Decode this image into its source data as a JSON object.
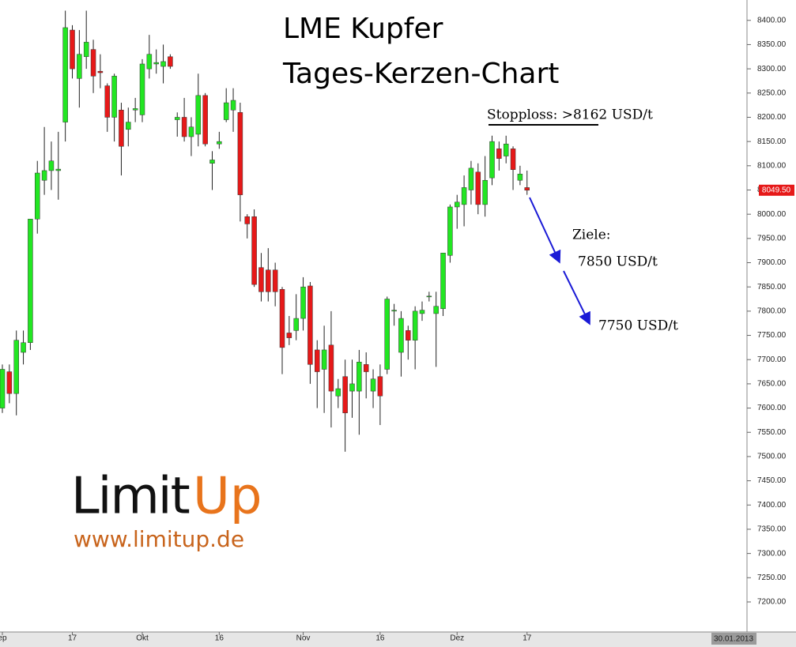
{
  "chart_data": {
    "type": "candlestick",
    "title": "LME Kupfer",
    "subtitle": "Tages-Kerzen-Chart",
    "annotations": {
      "stop": "Stopploss: >8162 USD/t",
      "targets_title": "Ziele:",
      "target1": "7850 USD/t",
      "target2": "7750 USD/t"
    },
    "logo": {
      "left": "Limit",
      "right": "Up",
      "url": "www.limitup.de"
    },
    "end_date": "30.01.2013",
    "last_price": {
      "value": 8049.5,
      "label": "8049.50"
    },
    "up_color": "#22e622",
    "down_color": "#e61919",
    "categories": [
      "ep",
      null,
      null,
      null,
      null,
      null,
      null,
      null,
      null,
      null,
      "17",
      null,
      null,
      null,
      null,
      null,
      null,
      null,
      null,
      null,
      "Okt",
      null,
      null,
      null,
      null,
      null,
      null,
      null,
      null,
      null,
      null,
      "16",
      null,
      null,
      null,
      null,
      null,
      null,
      null,
      null,
      null,
      null,
      null,
      "Nov",
      null,
      null,
      null,
      null,
      null,
      null,
      null,
      null,
      null,
      null,
      "16",
      null,
      null,
      null,
      null,
      null,
      null,
      null,
      null,
      null,
      null,
      "Dez",
      null,
      null,
      null,
      null,
      null,
      null,
      null,
      null,
      null,
      "17"
    ],
    "open": [
      7600,
      7675,
      7630,
      7715,
      7735,
      7990,
      8070,
      8090,
      8090,
      8190,
      8380,
      8280,
      8325,
      8340,
      8295,
      8265,
      8200,
      8215,
      8175,
      8215,
      8205,
      8300,
      8310,
      8305,
      8325,
      8195,
      8200,
      8160,
      8165,
      8245,
      8105,
      8145,
      8195,
      8215,
      8210,
      7995,
      7995,
      7890,
      7885,
      7885,
      7845,
      7755,
      7760,
      7785,
      7852,
      7720,
      7680,
      7730,
      7625,
      7665,
      7635,
      7635,
      7690,
      7635,
      7665,
      7680,
      7800,
      7715,
      7760,
      7740,
      7795,
      7830,
      7795,
      7805,
      7915,
      8015,
      8020,
      8050,
      8087,
      8020,
      8075,
      8135,
      8120,
      8135,
      8070,
      8055
    ],
    "high": [
      7690,
      7690,
      7760,
      7760,
      7990,
      8110,
      8180,
      8150,
      8170,
      8420,
      8390,
      8380,
      8420,
      8360,
      8330,
      8270,
      8290,
      8230,
      8220,
      8240,
      8320,
      8370,
      8340,
      8350,
      8330,
      8210,
      8240,
      8200,
      8290,
      8250,
      8130,
      8170,
      8260,
      8260,
      8230,
      8000,
      8010,
      7920,
      7930,
      7900,
      7850,
      7790,
      7835,
      7870,
      7860,
      7740,
      7770,
      7800,
      7660,
      7700,
      7700,
      7720,
      7715,
      7680,
      7690,
      7830,
      7815,
      7800,
      7770,
      7810,
      7820,
      7840,
      7840,
      7920,
      8020,
      8040,
      8080,
      8110,
      8105,
      8120,
      8162,
      8150,
      8162,
      8140,
      8100,
      8090
    ],
    "low": [
      7590,
      7610,
      7585,
      7690,
      7720,
      7960,
      8040,
      8050,
      8030,
      8150,
      8280,
      8220,
      8300,
      8250,
      8260,
      8170,
      8150,
      8080,
      8140,
      8190,
      8190,
      8280,
      8290,
      8270,
      8300,
      8160,
      8150,
      8120,
      8140,
      8140,
      8050,
      8135,
      8190,
      8170,
      7985,
      7950,
      7850,
      7820,
      7820,
      7810,
      7670,
      7730,
      7740,
      7760,
      7650,
      7600,
      7590,
      7560,
      7600,
      7510,
      7580,
      7545,
      7620,
      7600,
      7565,
      7670,
      7770,
      7665,
      7700,
      7680,
      7780,
      7820,
      7685,
      7790,
      7900,
      7970,
      7975,
      8020,
      8000,
      7995,
      8060,
      8090,
      8105,
      8050,
      8060,
      8040
    ],
    "close": [
      7680,
      7630,
      7740,
      7735,
      7990,
      8085,
      8090,
      8110,
      8093,
      8385,
      8300,
      8330,
      8355,
      8285,
      8292,
      8200,
      8285,
      8140,
      8190,
      8218,
      8310,
      8330,
      8313,
      8315,
      8305,
      8200,
      8160,
      8180,
      8245,
      8145,
      8112,
      8150,
      8230,
      8235,
      8040,
      7980,
      7855,
      7840,
      7840,
      7840,
      7725,
      7745,
      7785,
      7850,
      7690,
      7675,
      7720,
      7635,
      7640,
      7590,
      7650,
      7695,
      7675,
      7660,
      7625,
      7825,
      7802,
      7785,
      7740,
      7800,
      7802,
      7831,
      7810,
      7920,
      8015,
      8025,
      8055,
      8095,
      8020,
      8070,
      8150,
      8115,
      8145,
      8092,
      8083,
      8049.5
    ],
    "ylim": [
      7138,
      8442
    ],
    "yticks": [
      {
        "value": 7200,
        "label": "7200.00"
      },
      {
        "value": 7250,
        "label": "7250.00"
      },
      {
        "value": 7300,
        "label": "7300.00"
      },
      {
        "value": 7350,
        "label": "7350.00"
      },
      {
        "value": 7400,
        "label": "7400.00"
      },
      {
        "value": 7450,
        "label": "7450.00"
      },
      {
        "value": 7500,
        "label": "7500.00"
      },
      {
        "value": 7550,
        "label": "7550.00"
      },
      {
        "value": 7600,
        "label": "7600.00"
      },
      {
        "value": 7650,
        "label": "7650.00"
      },
      {
        "value": 7700,
        "label": "7700.00"
      },
      {
        "value": 7750,
        "label": "7750.00"
      },
      {
        "value": 7800,
        "label": "7800.00"
      },
      {
        "value": 7850,
        "label": "7850.00"
      },
      {
        "value": 7900,
        "label": "7900.00"
      },
      {
        "value": 7950,
        "label": "7950.00"
      },
      {
        "value": 8000,
        "label": "8000.00"
      },
      {
        "value": 8050,
        "label": "8050.00"
      },
      {
        "value": 8100,
        "label": "8100.00"
      },
      {
        "value": 8150,
        "label": "8150.00"
      },
      {
        "value": 8200,
        "label": "8200.00"
      },
      {
        "value": 8250,
        "label": "8250.00"
      },
      {
        "value": 8300,
        "label": "8300.00"
      },
      {
        "value": 8350,
        "label": "8350.00"
      },
      {
        "value": 8400,
        "label": "8400.00"
      }
    ]
  }
}
